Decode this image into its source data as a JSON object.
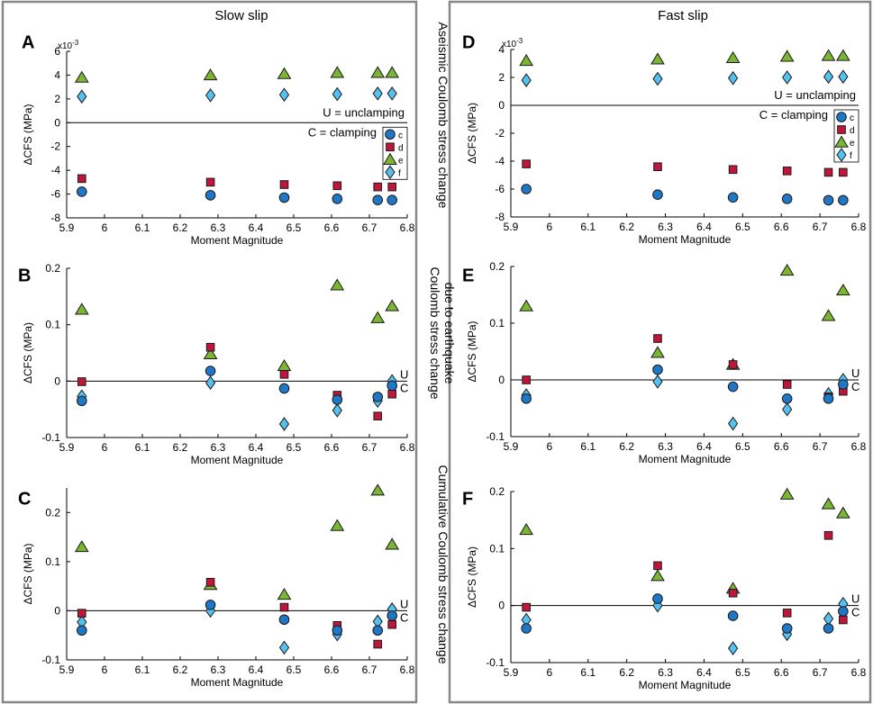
{
  "figure": {
    "col_titles": [
      "Slow slip",
      "Fast slip"
    ],
    "row_labels": [
      [
        "Aseismic Coulomb stress change"
      ],
      [
        "Coulomb stress change",
        "due to earthquake"
      ],
      [
        "Cumulative Coulomb stress change"
      ]
    ],
    "annotations": {
      "unclamping": "U = unclamping",
      "clamping": "C = clamping",
      "u": "U",
      "c": "C"
    }
  },
  "legend": {
    "items": [
      {
        "key": "c",
        "label": "c",
        "marker": "circle",
        "color": "#1f77c8"
      },
      {
        "key": "d",
        "label": "d",
        "marker": "square",
        "color": "#c0163b"
      },
      {
        "key": "e",
        "label": "e",
        "marker": "triangle",
        "color": "#7ab534"
      },
      {
        "key": "f",
        "label": "f",
        "marker": "diamond",
        "color": "#56c1ef"
      }
    ]
  },
  "chart_data": [
    {
      "type": "scatter",
      "panel": "A",
      "title": "Slow slip",
      "xlabel": "Moment Magnitude",
      "ylabel": "ΔCFS (MPa)",
      "xlim": [
        5.9,
        6.8
      ],
      "ylim": [
        -8,
        6
      ],
      "xticks": [
        "5.9",
        "6",
        "6.1",
        "6.2",
        "6.3",
        "6.4",
        "6.5",
        "6.6",
        "6.7",
        "6.8"
      ],
      "yticks": [
        -8,
        -6,
        -4,
        -2,
        0,
        2,
        4,
        6
      ],
      "yticklabels": [
        "-8",
        "-6",
        "-4",
        "-2",
        "0",
        "2",
        "4",
        "6"
      ],
      "exponent": "x10",
      "exponent_power": "-3",
      "legend": true,
      "uc_text": true,
      "uc_markers": false,
      "x": [
        5.94,
        6.28,
        6.475,
        6.615,
        6.722,
        6.76
      ],
      "series": [
        {
          "name": "c",
          "values": [
            -5.8,
            -6.1,
            -6.3,
            -6.4,
            -6.5,
            -6.5
          ]
        },
        {
          "name": "d",
          "values": [
            -4.7,
            -5.0,
            -5.2,
            -5.3,
            -5.4,
            -5.4
          ]
        },
        {
          "name": "e",
          "values": [
            3.8,
            4.0,
            4.1,
            4.2,
            4.2,
            4.2
          ]
        },
        {
          "name": "f",
          "values": [
            2.2,
            2.3,
            2.35,
            2.4,
            2.45,
            2.45
          ]
        }
      ]
    },
    {
      "type": "scatter",
      "panel": "B",
      "xlabel": "Moment Magnitude",
      "ylabel": "ΔCFS (MPa)",
      "xlim": [
        5.9,
        6.8
      ],
      "ylim": [
        -0.1,
        0.2
      ],
      "xticks": [
        "5.9",
        "6",
        "6.1",
        "6.2",
        "6.3",
        "6.4",
        "6.5",
        "6.6",
        "6.7",
        "6.8"
      ],
      "yticks": [
        -0.1,
        0,
        0.1,
        0.2
      ],
      "yticklabels": [
        "-0.1",
        "0",
        "0.1",
        "0.2"
      ],
      "legend": false,
      "uc_text": false,
      "uc_markers": true,
      "x": [
        5.94,
        6.28,
        6.475,
        6.615,
        6.722,
        6.76
      ],
      "series": [
        {
          "name": "c",
          "values": [
            -0.035,
            0.018,
            -0.013,
            -0.033,
            -0.028,
            -0.008
          ]
        },
        {
          "name": "d",
          "values": [
            -0.001,
            0.06,
            0.012,
            -0.025,
            -0.062,
            -0.023
          ]
        },
        {
          "name": "e",
          "values": [
            0.127,
            0.048,
            0.027,
            0.17,
            0.112,
            0.133
          ]
        },
        {
          "name": "f",
          "values": [
            -0.027,
            -0.003,
            -0.076,
            -0.052,
            -0.035,
            0.0
          ]
        }
      ]
    },
    {
      "type": "scatter",
      "panel": "C",
      "xlabel": "Moment Magnitude",
      "ylabel": "ΔCFS (MPa)",
      "xlim": [
        5.9,
        6.8
      ],
      "ylim": [
        -0.1,
        0.25
      ],
      "xticks": [
        "5.9",
        "6",
        "6.1",
        "6.2",
        "6.3",
        "6.4",
        "6.5",
        "6.6",
        "6.7",
        "6.8"
      ],
      "yticks": [
        -0.1,
        0,
        0.1,
        0.2
      ],
      "yticklabels": [
        "-0.1",
        "0",
        "0.1",
        "0.2"
      ],
      "legend": false,
      "uc_text": false,
      "uc_markers": true,
      "x": [
        5.94,
        6.28,
        6.475,
        6.615,
        6.722,
        6.76
      ],
      "series": [
        {
          "name": "c",
          "values": [
            -0.04,
            0.012,
            -0.018,
            -0.04,
            -0.04,
            -0.01
          ]
        },
        {
          "name": "d",
          "values": [
            -0.005,
            0.058,
            0.007,
            -0.03,
            -0.068,
            -0.028
          ]
        },
        {
          "name": "e",
          "values": [
            0.13,
            0.053,
            0.033,
            0.173,
            0.245,
            0.135
          ]
        },
        {
          "name": "f",
          "values": [
            -0.023,
            0.0,
            -0.075,
            -0.048,
            -0.022,
            0.003
          ]
        }
      ]
    },
    {
      "type": "scatter",
      "panel": "D",
      "title": "Fast slip",
      "xlabel": "Moment Magnitude",
      "ylabel": "ΔCFS (MPa)",
      "xlim": [
        5.9,
        6.8
      ],
      "ylim": [
        -8,
        4
      ],
      "xticks": [
        "5.9",
        "6",
        "6.1",
        "6.2",
        "6.3",
        "6.4",
        "6.5",
        "6.6",
        "6.7",
        "6.8"
      ],
      "yticks": [
        -8,
        -6,
        -4,
        -2,
        0,
        2,
        4
      ],
      "yticklabels": [
        "-8",
        "-6",
        "-4",
        "-2",
        "0",
        "2",
        "4"
      ],
      "exponent": "x10",
      "exponent_power": "-3",
      "legend": true,
      "uc_text": true,
      "uc_markers": false,
      "x": [
        5.94,
        6.28,
        6.475,
        6.615,
        6.722,
        6.76
      ],
      "series": [
        {
          "name": "c",
          "values": [
            -6.0,
            -6.4,
            -6.6,
            -6.7,
            -6.8,
            -6.8
          ]
        },
        {
          "name": "d",
          "values": [
            -4.2,
            -4.4,
            -4.6,
            -4.7,
            -4.8,
            -4.8
          ]
        },
        {
          "name": "e",
          "values": [
            3.2,
            3.3,
            3.4,
            3.5,
            3.55,
            3.55
          ]
        },
        {
          "name": "f",
          "values": [
            1.8,
            1.9,
            1.95,
            2.0,
            2.05,
            2.05
          ]
        }
      ]
    },
    {
      "type": "scatter",
      "panel": "E",
      "xlabel": "Moment Magnitude",
      "ylabel": "ΔCFS (MPa)",
      "xlim": [
        5.9,
        6.8
      ],
      "ylim": [
        -0.1,
        0.2
      ],
      "xticks": [
        "5.9",
        "6",
        "6.1",
        "6.2",
        "6.3",
        "6.4",
        "6.5",
        "6.6",
        "6.7",
        "6.8"
      ],
      "yticks": [
        -0.1,
        0,
        0.1,
        0.2
      ],
      "yticklabels": [
        "-0.1",
        "0",
        "0.1",
        "0.2"
      ],
      "legend": false,
      "uc_text": false,
      "uc_markers": true,
      "x": [
        5.94,
        6.28,
        6.475,
        6.615,
        6.722,
        6.76
      ],
      "series": [
        {
          "name": "c",
          "values": [
            -0.033,
            0.018,
            -0.012,
            -0.033,
            -0.033,
            -0.008
          ]
        },
        {
          "name": "d",
          "values": [
            0.0,
            0.073,
            0.027,
            -0.008,
            -0.03,
            -0.02
          ]
        },
        {
          "name": "e",
          "values": [
            0.13,
            0.048,
            0.027,
            0.193,
            0.113,
            0.158
          ]
        },
        {
          "name": "f",
          "values": [
            -0.027,
            -0.003,
            -0.077,
            -0.052,
            -0.025,
            0.0
          ]
        }
      ]
    },
    {
      "type": "scatter",
      "panel": "F",
      "xlabel": "Moment Magnitude",
      "ylabel": "ΔCFS (MPa)",
      "xlim": [
        5.9,
        6.8
      ],
      "ylim": [
        -0.1,
        0.2
      ],
      "xticks": [
        "5.9",
        "6",
        "6.1",
        "6.2",
        "6.3",
        "6.4",
        "6.5",
        "6.6",
        "6.7",
        "6.8"
      ],
      "yticks": [
        -0.1,
        0,
        0.1,
        0.2
      ],
      "yticklabels": [
        "-0.1",
        "0",
        "0.1",
        "0.2"
      ],
      "legend": false,
      "uc_text": false,
      "uc_markers": true,
      "x": [
        5.94,
        6.28,
        6.475,
        6.615,
        6.722,
        6.76
      ],
      "series": [
        {
          "name": "c",
          "values": [
            -0.04,
            0.012,
            -0.018,
            -0.04,
            -0.04,
            -0.01
          ]
        },
        {
          "name": "d",
          "values": [
            -0.003,
            0.07,
            0.022,
            -0.013,
            0.123,
            -0.025
          ]
        },
        {
          "name": "e",
          "values": [
            0.133,
            0.052,
            0.03,
            0.195,
            0.178,
            0.162
          ]
        },
        {
          "name": "f",
          "values": [
            -0.025,
            0.0,
            -0.075,
            -0.05,
            -0.023,
            0.003
          ]
        }
      ]
    }
  ]
}
